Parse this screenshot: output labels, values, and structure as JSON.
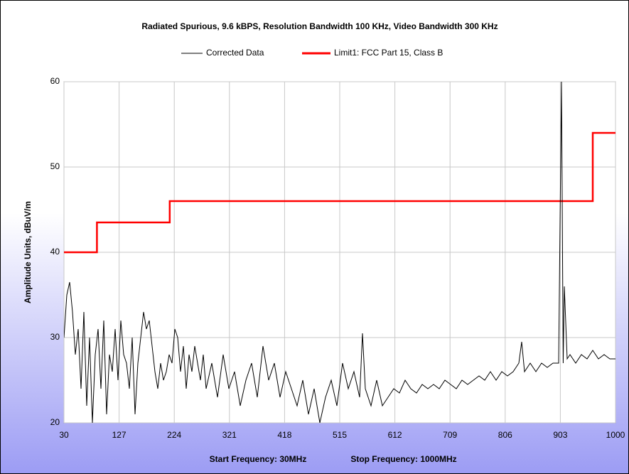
{
  "chart_data": {
    "type": "line",
    "title": "Radiated Spurious, 9.6 kBPS, Resolution Bandwidth 100 KHz, Video Bandwidth 300 KHz",
    "y_label": "Amplitude Units, dBuV/m",
    "annotations": [
      "Start Frequency: 30MHz",
      "Stop Frequency: 1000MHz"
    ],
    "xlim": [
      30,
      1000
    ],
    "xticks": [
      30,
      127,
      224,
      321,
      418,
      515,
      612,
      709,
      806,
      903,
      1000
    ],
    "ylim": [
      20,
      60
    ],
    "yticks": [
      20,
      30,
      40,
      50,
      60
    ],
    "grid": true,
    "legend": "top",
    "series": [
      {
        "name": "Corrected Data",
        "color": "#000000",
        "x": [
          30,
          35,
          40,
          45,
          50,
          55,
          60,
          65,
          70,
          75,
          80,
          85,
          90,
          95,
          100,
          105,
          110,
          115,
          120,
          125,
          130,
          135,
          140,
          145,
          150,
          155,
          160,
          165,
          170,
          175,
          180,
          185,
          190,
          195,
          200,
          205,
          210,
          215,
          220,
          225,
          230,
          235,
          240,
          245,
          250,
          255,
          260,
          265,
          270,
          275,
          280,
          290,
          300,
          310,
          320,
          330,
          340,
          350,
          360,
          370,
          380,
          390,
          400,
          410,
          420,
          430,
          440,
          450,
          460,
          470,
          480,
          490,
          500,
          510,
          520,
          530,
          540,
          550,
          555,
          560,
          570,
          580,
          590,
          600,
          610,
          620,
          630,
          640,
          650,
          660,
          670,
          680,
          690,
          700,
          710,
          720,
          730,
          740,
          750,
          760,
          770,
          780,
          790,
          800,
          810,
          820,
          830,
          835,
          840,
          850,
          860,
          870,
          880,
          890,
          900,
          905,
          908,
          910,
          915,
          920,
          930,
          940,
          950,
          960,
          970,
          980,
          990,
          1000
        ],
        "values": [
          30,
          35,
          36.5,
          33,
          28,
          31,
          24,
          33,
          22,
          30,
          20,
          28,
          31,
          24,
          32,
          21,
          28,
          26,
          31,
          25,
          32,
          28,
          27,
          24,
          30,
          21,
          27,
          30,
          33,
          31,
          32,
          29,
          26,
          24,
          27,
          25,
          26,
          28,
          27,
          31,
          30,
          26,
          29,
          24,
          28,
          26,
          29,
          27,
          25,
          28,
          24,
          27,
          23,
          28,
          24,
          26,
          22,
          25,
          27,
          23,
          29,
          25,
          27,
          23,
          26,
          24,
          22,
          25,
          21,
          24,
          20,
          23,
          25,
          22,
          27,
          24,
          26,
          23,
          30.5,
          24,
          22,
          25,
          22,
          23,
          24,
          23.5,
          25,
          24,
          23.5,
          24.5,
          24,
          24.5,
          24,
          25,
          24.5,
          24,
          25,
          24.5,
          25,
          25.5,
          25,
          26,
          25,
          26,
          25.5,
          26,
          27,
          29.5,
          26,
          27,
          26,
          27,
          26.5,
          27,
          27,
          60,
          27,
          36,
          27.5,
          28,
          27,
          28,
          27.5,
          28.5,
          27.5,
          28,
          27.5,
          27.5
        ]
      },
      {
        "name": "Limit1: FCC Part 15, Class B",
        "color": "#ff0000",
        "x": [
          30,
          88,
          88,
          216,
          216,
          960,
          960,
          1000
        ],
        "values": [
          40,
          40,
          43.5,
          43.5,
          46,
          46,
          54,
          54
        ]
      }
    ]
  }
}
